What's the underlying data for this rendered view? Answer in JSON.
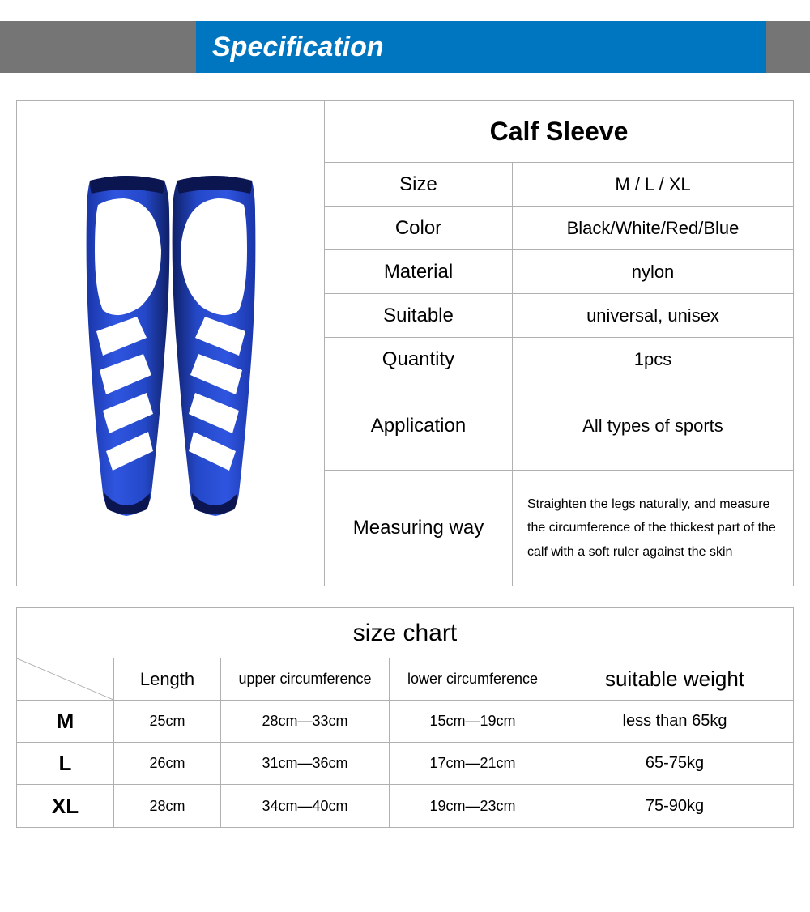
{
  "header": {
    "title": "Specification"
  },
  "palette": {
    "header_blue": "#0076c0",
    "header_gray": "#757575",
    "sleeve_blue": "#2448c8",
    "sleeve_dark": "#0f1f66",
    "sleeve_white": "#ffffff",
    "border": "#b0b0b0",
    "text": "#000000",
    "bg": "#ffffff"
  },
  "spec": {
    "title": "Calf Sleeve",
    "rows": [
      {
        "key": "Size",
        "val": "M / L / XL",
        "klass": "r-compact"
      },
      {
        "key": "Color",
        "val": "Black/White/Red/Blue",
        "klass": "r-compact"
      },
      {
        "key": "Material",
        "val": "nylon",
        "klass": "r-compact"
      },
      {
        "key": "Suitable",
        "val": "universal, unisex",
        "klass": "r-compact"
      },
      {
        "key": "Quantity",
        "val": "1pcs",
        "klass": "r-compact"
      },
      {
        "key": "Application",
        "val": "All types of sports",
        "klass": "r-app"
      },
      {
        "key": "Measuring way",
        "val": "Straighten the legs naturally, and measure the circumference of the thickest part of the calf with a soft ruler against the skin",
        "klass": "r-measure",
        "small": true
      }
    ]
  },
  "size_chart": {
    "title": "size chart",
    "columns": [
      "",
      "Length",
      "upper circumference",
      "lower circumference",
      "suitable weight"
    ],
    "rows": [
      {
        "size": "M",
        "length": "25cm",
        "upper": "28cm—33cm",
        "lower": "15cm—19cm",
        "weight": "less than 65kg"
      },
      {
        "size": "L",
        "length": "26cm",
        "upper": "31cm—36cm",
        "lower": "17cm—21cm",
        "weight": "65-75kg"
      },
      {
        "size": "XL",
        "length": "28cm",
        "upper": "34cm—40cm",
        "lower": "19cm—23cm",
        "weight": "75-90kg"
      }
    ]
  }
}
